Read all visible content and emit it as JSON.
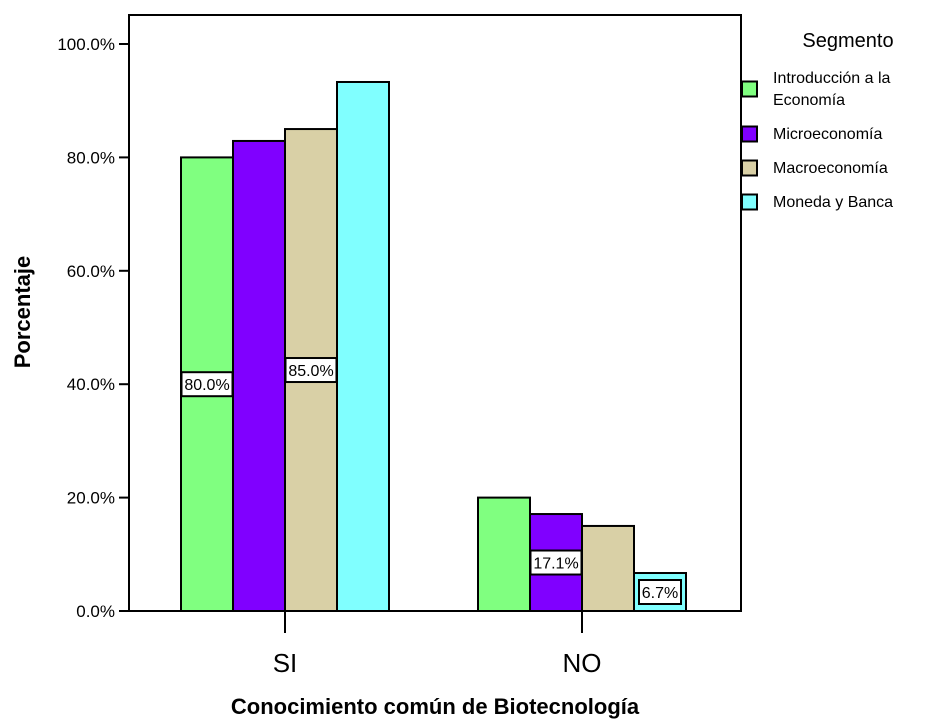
{
  "chart_data": {
    "type": "bar",
    "title": "",
    "xlabel": "Conocimiento común de Biotecnología",
    "ylabel": "Porcentaje",
    "categories": [
      "SI",
      "NO"
    ],
    "ylim": [
      0,
      100
    ],
    "y_ticks": [
      "0.0%",
      "20.0%",
      "40.0%",
      "60.0%",
      "80.0%",
      "100.0%"
    ],
    "grid": false,
    "legend_title": "Segmento",
    "legend_position": "right",
    "series": [
      {
        "name": "Introducción a la Economía",
        "legend_lines": [
          "Introducción a la",
          "Economía"
        ],
        "color": "#80ff80",
        "values": [
          80.0,
          20.0
        ]
      },
      {
        "name": "Microeconomía",
        "legend_lines": [
          "Microeconomía"
        ],
        "color": "#8000ff",
        "values": [
          82.9,
          17.1
        ]
      },
      {
        "name": "Macroeconomía",
        "legend_lines": [
          "Macroeconomía"
        ],
        "color": "#d9d0a6",
        "values": [
          85.0,
          15.0
        ]
      },
      {
        "name": "Moneda y Banca",
        "legend_lines": [
          "Moneda y Banca"
        ],
        "color": "#80ffff",
        "values": [
          93.3,
          6.7
        ]
      }
    ],
    "data_labels": [
      {
        "series": 0,
        "category": 0,
        "text": "80.0%"
      },
      {
        "series": 2,
        "category": 0,
        "text": "85.0%"
      },
      {
        "series": 1,
        "category": 1,
        "text": "17.1%"
      },
      {
        "series": 3,
        "category": 1,
        "text": "6.7%"
      }
    ]
  }
}
